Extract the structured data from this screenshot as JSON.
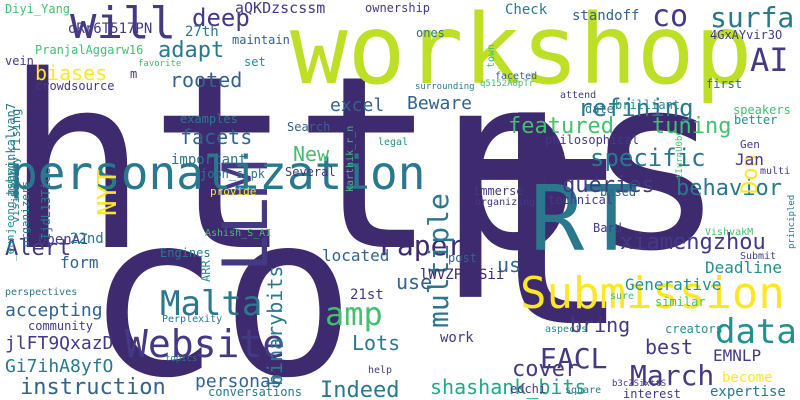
{
  "palette": {
    "dark_purple": "#3e2a6e",
    "indigo": "#443a83",
    "blue": "#3b528b",
    "steel": "#33638d",
    "teal": "#2a788e",
    "sea": "#21918c",
    "green": "#22a884",
    "lime_green": "#44bf70",
    "lime": "#7ad151",
    "yellow_green": "#bddf26",
    "yellow": "#fde725"
  },
  "words": [
    {
      "text": "https"
    },
    {
      "text": "t"
    },
    {
      "text": "co"
    },
    {
      "text": "workshop"
    },
    {
      "text": "RT"
    },
    {
      "text": "LLM"
    },
    {
      "text": "personalization"
    },
    {
      "text": "Submission"
    },
    {
      "text": "will"
    },
    {
      "text": "Website"
    },
    {
      "text": "Paper"
    },
    {
      "text": "Malta"
    },
    {
      "text": "amp"
    },
    {
      "text": "data"
    },
    {
      "text": "March"
    },
    {
      "text": "EACL"
    },
    {
      "text": "AI"
    },
    {
      "text": "co"
    },
    {
      "text": "surfa"
    },
    {
      "text": "deep"
    },
    {
      "text": "adapt"
    },
    {
      "text": "refining"
    },
    {
      "text": "featured"
    },
    {
      "text": "tuning"
    },
    {
      "text": "specific"
    },
    {
      "text": "behavior"
    },
    {
      "text": "xiamengzhou"
    },
    {
      "text": "queries"
    },
    {
      "text": "multiple"
    },
    {
      "text": "binarybits"
    },
    {
      "text": "instruction"
    },
    {
      "text": "Indeed"
    },
    {
      "text": "shashank_bits"
    },
    {
      "text": "personas"
    },
    {
      "text": "cover"
    },
    {
      "text": "best"
    },
    {
      "text": "Lots"
    },
    {
      "text": "bring"
    },
    {
      "text": "EMNLP"
    },
    {
      "text": "Alert"
    },
    {
      "text": "accepting"
    },
    {
      "text": "facets"
    },
    {
      "text": "rooted"
    },
    {
      "text": "biases"
    },
    {
      "text": "excel"
    },
    {
      "text": "Beware"
    },
    {
      "text": "NYT"
    },
    {
      "text": "New"
    },
    {
      "text": "Don"
    },
    {
      "text": "Jan"
    },
    {
      "text": "Deadline"
    },
    {
      "text": "Generative"
    },
    {
      "text": "located"
    },
    {
      "text": "use"
    },
    {
      "text": "us"
    },
    {
      "text": "form"
    },
    {
      "text": "OpenAI"
    },
    {
      "text": "22nd"
    },
    {
      "text": "27th"
    },
    {
      "text": "important"
    },
    {
      "text": "become"
    },
    {
      "text": "expertise"
    },
    {
      "text": "work"
    },
    {
      "text": "Gi7ihA8yfO"
    },
    {
      "text": "jlFT9QxazD"
    },
    {
      "text": "oRr6T517PN"
    },
    {
      "text": "aQKDzscssm"
    },
    {
      "text": "lWVZPDWSii"
    },
    {
      "text": "Check"
    },
    {
      "text": "standoff"
    },
    {
      "text": "4GxAYvir3O"
    },
    {
      "text": "Diyi_Yang"
    },
    {
      "text": "ownership"
    },
    {
      "text": "vein"
    },
    {
      "text": "maintain"
    },
    {
      "text": "ones"
    },
    {
      "text": "town"
    },
    {
      "text": "PranjalAggarw16"
    },
    {
      "text": "first"
    },
    {
      "text": "m"
    },
    {
      "text": "crowdsource"
    },
    {
      "text": "favorite"
    },
    {
      "text": "set"
    },
    {
      "text": "faceted"
    },
    {
      "text": "q5152A8pTr"
    },
    {
      "text": "speakers"
    },
    {
      "text": "surrounding"
    },
    {
      "text": "attend"
    },
    {
      "text": "date"
    },
    {
      "text": "brilliant"
    },
    {
      "text": "rising"
    },
    {
      "text": "ashwinkalyan7"
    },
    {
      "text": "examples"
    },
    {
      "text": "visibility"
    },
    {
      "text": "_eunjeong_hwang"
    },
    {
      "text": "IjdL13Ti8e"
    },
    {
      "text": "organizers"
    },
    {
      "text": "Search"
    },
    {
      "text": "karthik_r_n"
    },
    {
      "text": "legal"
    },
    {
      "text": "philosophical"
    },
    {
      "text": "better"
    },
    {
      "text": "Gen"
    },
    {
      "text": "multi"
    },
    {
      "text": "tIurnU0bC"
    },
    {
      "text": "principled"
    },
    {
      "text": "joon_s_pk"
    },
    {
      "text": "Several"
    },
    {
      "text": "immerse"
    },
    {
      "text": "technical"
    },
    {
      "text": "provide"
    },
    {
      "text": "organizing"
    },
    {
      "text": "based"
    },
    {
      "text": "Bard"
    },
    {
      "text": "Engines"
    },
    {
      "text": "ARR"
    },
    {
      "text": "Ashish_S_AI"
    },
    {
      "text": "post"
    },
    {
      "text": "VishvakM"
    },
    {
      "text": "Submit"
    },
    {
      "text": "21st"
    },
    {
      "text": "sure"
    },
    {
      "text": "similar"
    },
    {
      "text": "perspectives"
    },
    {
      "text": "community"
    },
    {
      "text": "Perplexity"
    },
    {
      "text": "aspects"
    },
    {
      "text": "creators"
    },
    {
      "text": "edchi"
    },
    {
      "text": "b3cZSixttS"
    },
    {
      "text": "topics"
    },
    {
      "text": "conversations"
    },
    {
      "text": "help"
    },
    {
      "text": "square"
    },
    {
      "text": "interest"
    }
  ]
}
